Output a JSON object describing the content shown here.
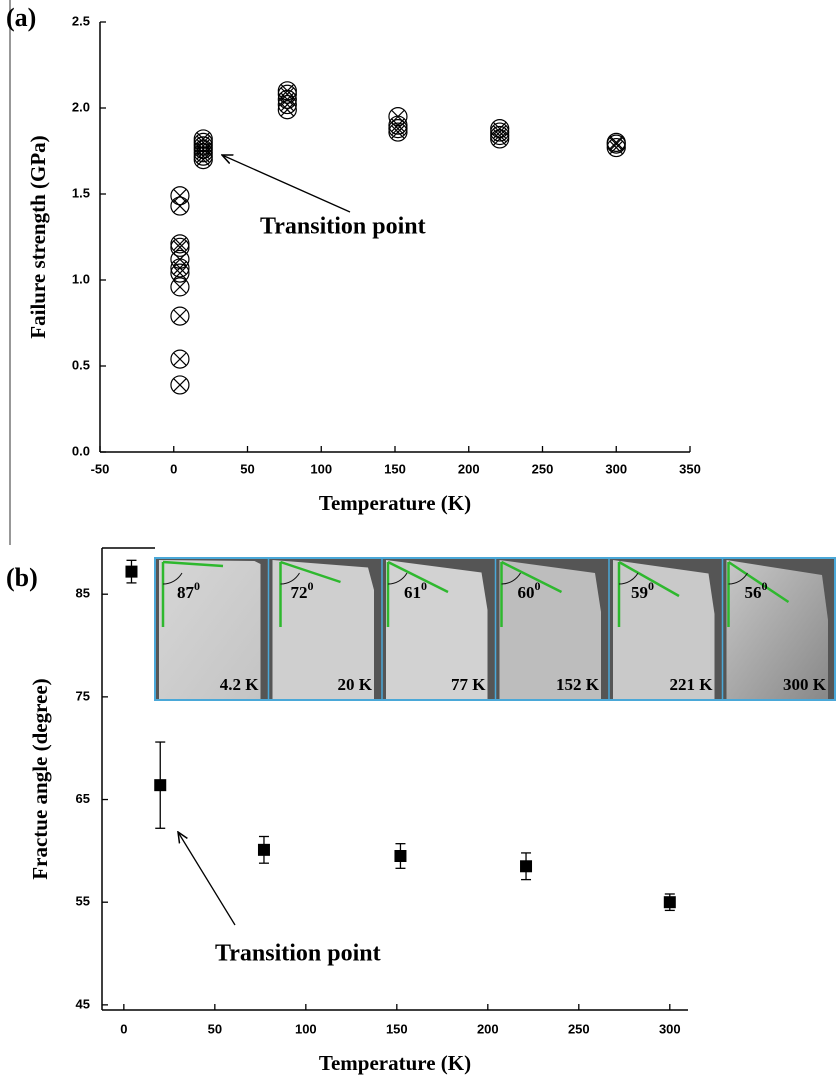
{
  "chart_data": [
    {
      "type": "scatter",
      "panel_label": "(a)",
      "x_label": "Temperature (K)",
      "y_label": "Failure strength (GPa)",
      "x": [
        4.2,
        4.2,
        4.2,
        4.2,
        4.2,
        4.2,
        4.2,
        4.2,
        4.2,
        4.2,
        4.2,
        20,
        20,
        20,
        20,
        20,
        20,
        20,
        77,
        77,
        77,
        77,
        77,
        152,
        152,
        152,
        152,
        221,
        221,
        221,
        221,
        300,
        300,
        300
      ],
      "y": [
        0.39,
        0.54,
        0.79,
        0.96,
        1.04,
        1.07,
        1.12,
        1.19,
        1.21,
        1.43,
        1.49,
        1.7,
        1.72,
        1.74,
        1.76,
        1.78,
        1.8,
        1.82,
        1.99,
        2.02,
        2.05,
        2.08,
        2.1,
        1.86,
        1.88,
        1.9,
        1.95,
        1.82,
        1.84,
        1.86,
        1.88,
        1.77,
        1.79,
        1.8
      ],
      "color": "#000000",
      "xlim": [
        -50,
        350
      ],
      "xticks": [
        -50,
        0,
        50,
        100,
        150,
        200,
        250,
        300,
        350
      ],
      "ylim": [
        0,
        2.5
      ],
      "yticks": [
        {
          "value": 0,
          "label": "0.0"
        },
        0.5,
        {
          "value": 1,
          "label": "1.0"
        },
        1.5,
        {
          "value": 2,
          "label": "2.0"
        },
        2.5
      ],
      "annotation": "Transition point"
    },
    {
      "type": "scatter",
      "panel_label": "(b)",
      "x_label": "Temperature (K)",
      "y_label": "Fractue angle (degree)",
      "x": [
        4.2,
        20,
        77,
        152,
        221,
        300
      ],
      "y": [
        87.2,
        66.4,
        60.1,
        59.5,
        58.5,
        55.0
      ],
      "errors": [
        1.1,
        4.2,
        1.3,
        1.2,
        1.3,
        0.8
      ],
      "color": "#000000",
      "xlim": [
        -12,
        310
      ],
      "xticks": [
        0,
        50,
        100,
        150,
        200,
        250,
        300
      ],
      "ylim": [
        44.5,
        89.5
      ],
      "yticks": [
        45,
        55,
        65,
        75,
        85
      ],
      "annotation": "Transition point",
      "inset": {
        "angles": [
          "87",
          "72",
          "61",
          "60",
          "59",
          "56"
        ],
        "degree_mark": "0",
        "temperatures": [
          "4.2 K",
          "20 K",
          "77 K",
          "152 K",
          "221 K",
          "300 K"
        ]
      }
    }
  ]
}
